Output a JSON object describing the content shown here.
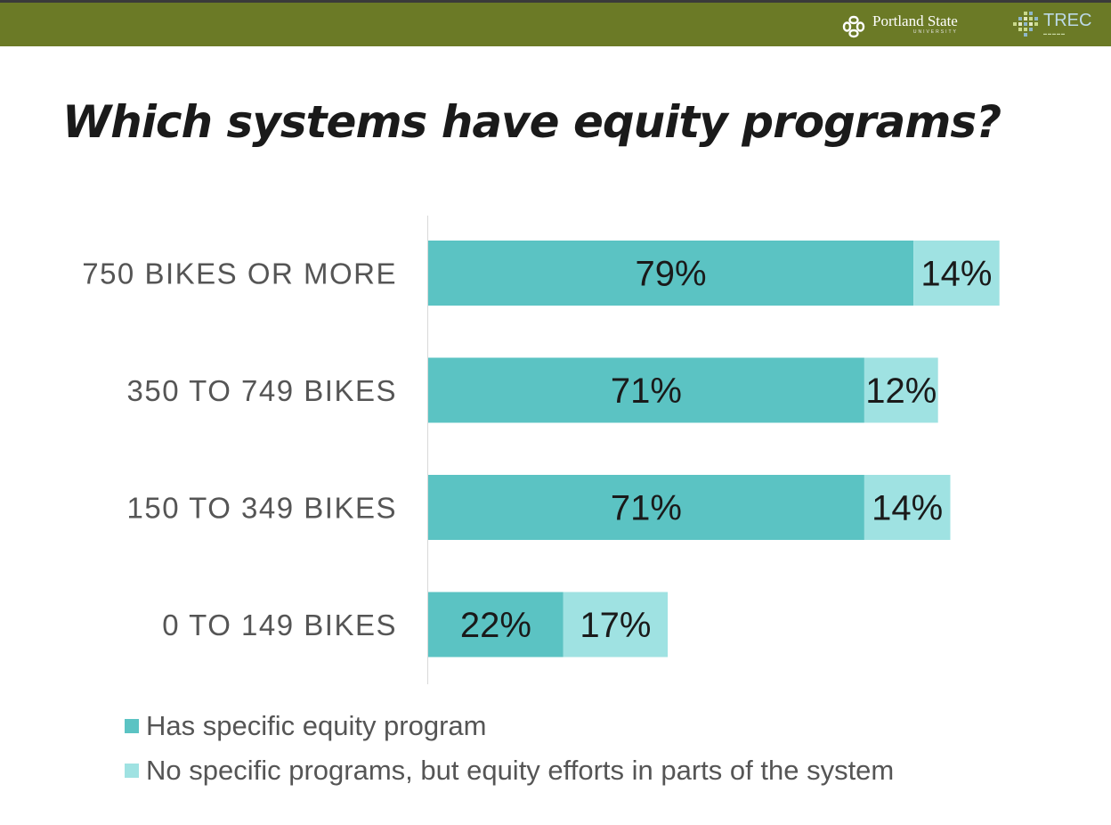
{
  "header": {
    "logo_psu_name": "Portland State",
    "logo_psu_sub": "UNIVERSITY",
    "logo_trec_name": "TREC"
  },
  "title": "Which systems have equity programs?",
  "colors": {
    "header_bar": "#6b7a26",
    "series_1": "#5bc3c3",
    "series_2": "#9fe2e2"
  },
  "chart_data": {
    "type": "bar",
    "orientation": "horizontal",
    "stacked": true,
    "categories": [
      "750 BIKES OR MORE",
      "350 TO 749 BIKES",
      "150 TO 349 BIKES",
      "0 TO 149 BIKES"
    ],
    "series": [
      {
        "name": "Has specific equity program",
        "values": [
          79,
          71,
          71,
          22
        ]
      },
      {
        "name": "No specific programs, but equity efforts in parts of the system",
        "values": [
          14,
          12,
          14,
          17
        ]
      }
    ],
    "value_suffix": "%",
    "xlim": [
      0,
      100
    ],
    "grid": false,
    "legend_position": "bottom-left"
  }
}
